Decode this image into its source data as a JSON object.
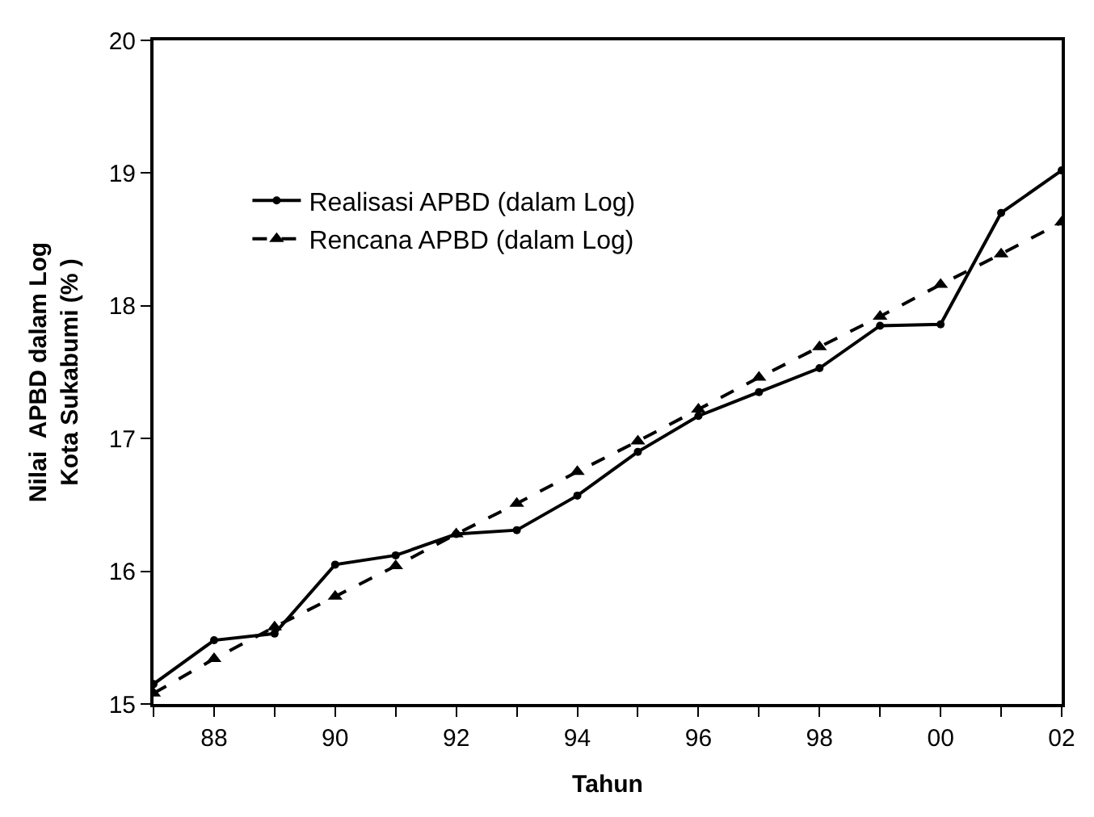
{
  "chart_data": {
    "type": "line",
    "xlabel": "Tahun",
    "ylabel": "Nilai  APBD dalam Log\nKota Sukabumi (% )",
    "x": [
      1987,
      1988,
      1989,
      1990,
      1991,
      1992,
      1993,
      1994,
      1995,
      1996,
      1997,
      1998,
      1999,
      2000,
      2001,
      2002
    ],
    "series": [
      {
        "name": "Realisasi APBD (dalam Log)",
        "color": "#000000",
        "marker": "circle",
        "line_style": "solid",
        "values": [
          15.15,
          15.48,
          15.53,
          16.05,
          16.12,
          16.28,
          16.31,
          16.57,
          16.9,
          17.17,
          17.35,
          17.53,
          17.85,
          17.86,
          18.7,
          19.02
        ]
      },
      {
        "name": "Rencana APBD (dalam Log)",
        "color": "#000000",
        "marker": "triangle",
        "line_style": "dashed",
        "values": [
          15.08,
          15.34,
          15.58,
          15.81,
          16.04,
          16.28,
          16.51,
          16.75,
          16.98,
          17.22,
          17.46,
          17.69,
          17.92,
          18.16,
          18.39,
          18.63
        ]
      }
    ],
    "xlim": [
      1987,
      2002
    ],
    "xticks": [
      {
        "value": 1987,
        "label": null
      },
      {
        "value": 1988,
        "label": "88"
      },
      {
        "value": 1989,
        "label": null
      },
      {
        "value": 1990,
        "label": "90"
      },
      {
        "value": 1991,
        "label": null
      },
      {
        "value": 1992,
        "label": "92"
      },
      {
        "value": 1993,
        "label": null
      },
      {
        "value": 1994,
        "label": "94"
      },
      {
        "value": 1995,
        "label": null
      },
      {
        "value": 1996,
        "label": "96"
      },
      {
        "value": 1997,
        "label": null
      },
      {
        "value": 1998,
        "label": "98"
      },
      {
        "value": 1999,
        "label": null
      },
      {
        "value": 2000,
        "label": "00"
      },
      {
        "value": 2001,
        "label": null
      },
      {
        "value": 2002,
        "label": "02"
      }
    ],
    "ylim": [
      15,
      20
    ],
    "yticks": [
      15,
      16,
      17,
      18,
      19,
      20
    ],
    "legend": "top left"
  }
}
